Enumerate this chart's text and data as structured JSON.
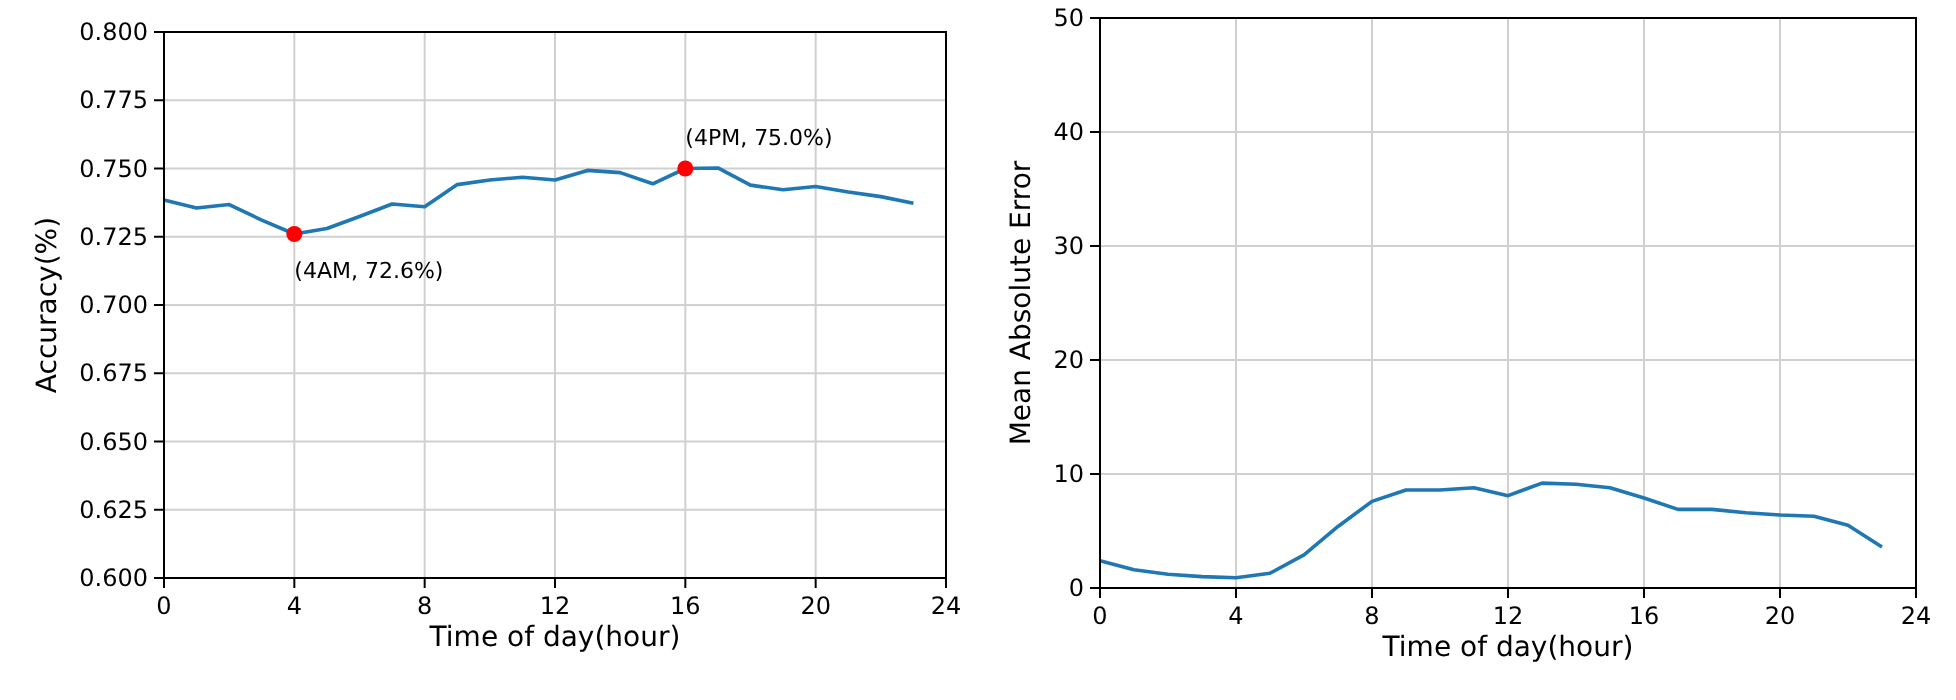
{
  "chart_data": [
    {
      "type": "line",
      "xlabel": "Time of day(hour)",
      "ylabel": "Accuracy(%)",
      "xlim": [
        0,
        24
      ],
      "xticks": [
        0,
        4,
        8,
        12,
        16,
        20,
        24
      ],
      "ylim": [
        0.6,
        0.8
      ],
      "yticks": [
        {
          "value": 0.6,
          "label": "0.600"
        },
        {
          "value": 0.625,
          "label": "0.625"
        },
        {
          "value": 0.65,
          "label": "0.650"
        },
        {
          "value": 0.675,
          "label": "0.675"
        },
        {
          "value": 0.7,
          "label": "0.700"
        },
        {
          "value": 0.725,
          "label": "0.725"
        },
        {
          "value": 0.75,
          "label": "0.750"
        },
        {
          "value": 0.775,
          "label": "0.775"
        },
        {
          "value": 0.8,
          "label": "0.800"
        }
      ],
      "grid": true,
      "x": [
        0,
        1,
        2,
        3,
        4,
        5,
        6,
        7,
        8,
        9,
        10,
        11,
        12,
        13,
        14,
        15,
        16,
        17,
        18,
        19,
        20,
        21,
        22,
        23
      ],
      "series": [
        {
          "color": "#1f77b4",
          "values": [
            0.7385,
            0.7355,
            0.7368,
            0.7311,
            0.726,
            0.728,
            0.7324,
            0.737,
            0.736,
            0.7441,
            0.7458,
            0.7468,
            0.7458,
            0.7493,
            0.7485,
            0.7444,
            0.75,
            0.7502,
            0.7439,
            0.7422,
            0.7434,
            0.7414,
            0.7397,
            0.7373
          ]
        },
        {
          "type": "scatter",
          "color": "#ff0000",
          "marker": "circle",
          "x": [
            4,
            16
          ],
          "values": [
            0.726,
            0.75
          ]
        }
      ],
      "annotations": [
        {
          "text": "(4AM, 72.6%)",
          "x": 4,
          "y": 0.726
        },
        {
          "text": "(4PM, 75.0%)",
          "x": 16,
          "y": 0.75
        }
      ]
    },
    {
      "type": "line",
      "xlabel": "Time of day(hour)",
      "ylabel": "Mean Absolute Error",
      "xlim": [
        0,
        24
      ],
      "xticks": [
        0,
        4,
        8,
        12,
        16,
        20,
        24
      ],
      "ylim": [
        0,
        50
      ],
      "yticks": [
        0,
        10,
        20,
        30,
        40,
        50
      ],
      "grid": true,
      "x": [
        0,
        1,
        2,
        3,
        4,
        5,
        6,
        7,
        8,
        9,
        10,
        11,
        12,
        13,
        14,
        15,
        16,
        17,
        18,
        19,
        20,
        21,
        22,
        23
      ],
      "series": [
        {
          "color": "#1f77b4",
          "values": [
            2.4,
            1.6,
            1.2,
            1.0,
            0.9,
            1.3,
            2.9,
            5.4,
            7.6,
            8.6,
            8.6,
            8.8,
            8.1,
            9.2,
            9.1,
            8.8,
            7.9,
            6.9,
            6.9,
            6.6,
            6.4,
            6.3,
            5.5,
            3.6
          ]
        }
      ]
    }
  ]
}
